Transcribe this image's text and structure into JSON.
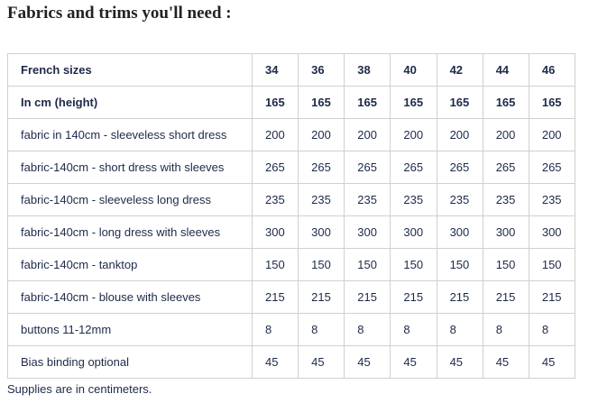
{
  "heading": "Fabrics and trims you'll need :",
  "table": {
    "header": [
      "French sizes",
      34,
      36,
      38,
      40,
      42,
      44,
      46
    ],
    "rows": [
      [
        "In cm (height)",
        165,
        165,
        165,
        165,
        165,
        165,
        165
      ],
      [
        "fabric in 140cm - sleeveless short dress",
        200,
        200,
        200,
        200,
        200,
        200,
        200
      ],
      [
        "fabric-140cm - short dress with sleeves",
        265,
        265,
        265,
        265,
        265,
        265,
        265
      ],
      [
        "fabric-140cm - sleeveless long dress",
        235,
        235,
        235,
        235,
        235,
        235,
        235
      ],
      [
        "fabric-140cm - long dress with sleeves",
        300,
        300,
        300,
        300,
        300,
        300,
        300
      ],
      [
        "fabric-140cm - tanktop",
        150,
        150,
        150,
        150,
        150,
        150,
        150
      ],
      [
        "fabric-140cm - blouse with sleeves",
        215,
        215,
        215,
        215,
        215,
        215,
        215
      ],
      [
        "buttons 11-12mm",
        8,
        8,
        8,
        8,
        8,
        8,
        8
      ],
      [
        "Bias binding optional",
        45,
        45,
        45,
        45,
        45,
        45,
        45
      ]
    ]
  },
  "footnote": "Supplies are in centimeters."
}
